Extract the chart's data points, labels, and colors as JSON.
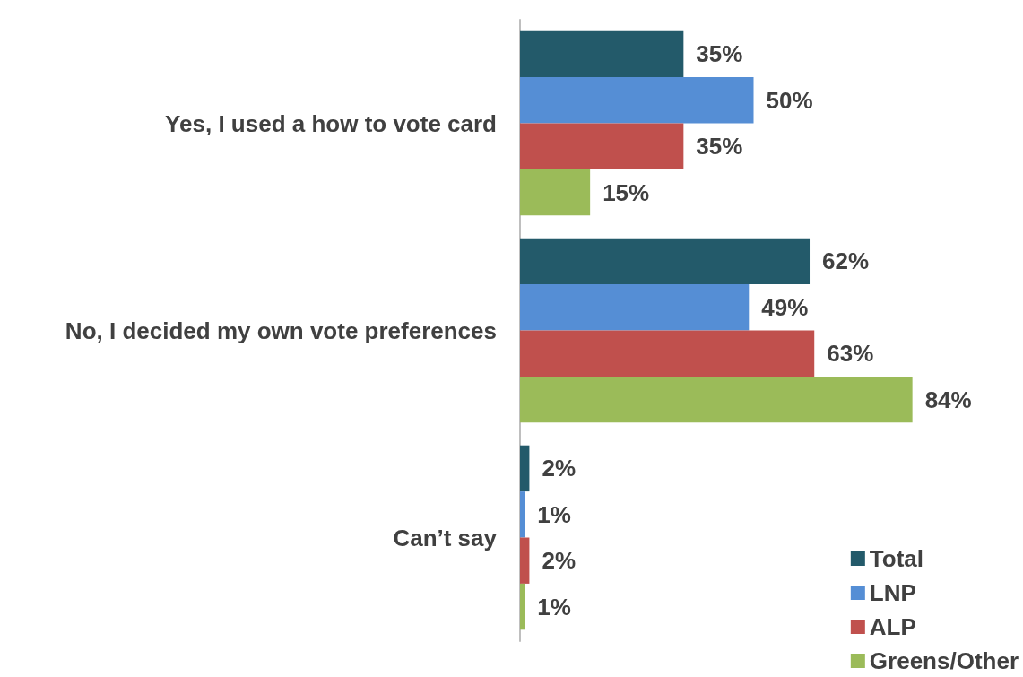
{
  "chart_data": {
    "type": "bar",
    "orientation": "horizontal",
    "categories": [
      "Yes, I used a how to vote card",
      "No, I decided my own vote preferences",
      "Can’t say"
    ],
    "series": [
      {
        "name": "Total",
        "color": "#235a6a",
        "values": [
          35,
          62,
          2
        ],
        "value_labels": [
          "35%",
          "62%",
          "2%"
        ]
      },
      {
        "name": "LNP",
        "color": "#558ed5",
        "values": [
          50,
          49,
          1
        ],
        "value_labels": [
          "50%",
          "49%",
          "1%"
        ]
      },
      {
        "name": "ALP",
        "color": "#c0504d",
        "values": [
          35,
          63,
          2
        ],
        "value_labels": [
          "35%",
          "63%",
          "2%"
        ]
      },
      {
        "name": "Greens/Other",
        "color": "#9bbb59",
        "values": [
          15,
          84,
          1
        ],
        "value_labels": [
          "15%",
          "84%",
          "1%"
        ]
      }
    ],
    "legend": "bottom right",
    "grid": false
  }
}
